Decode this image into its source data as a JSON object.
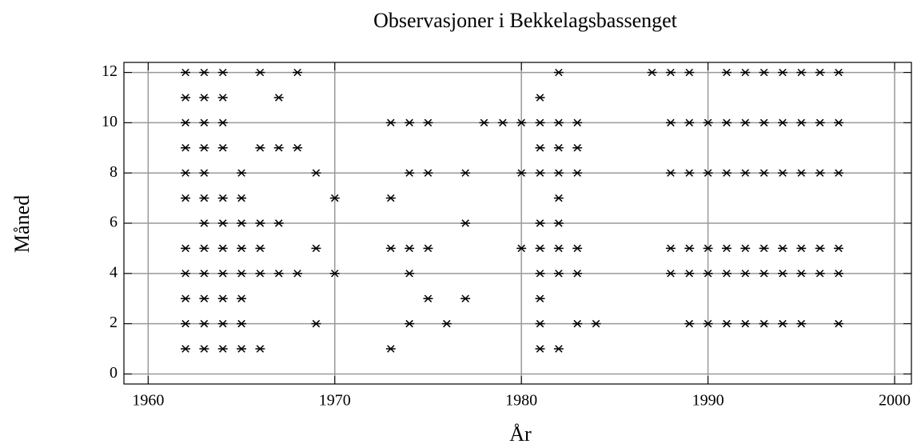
{
  "chart_data": {
    "type": "scatter",
    "title": "Observasjoner i Bekkelagsbassenget",
    "x_label": "År",
    "y_label": "Måned",
    "xlim": [
      1958.7,
      2000.9
    ],
    "ylim": [
      -0.4,
      12.4
    ],
    "xticks": [
      1960,
      1970,
      1980,
      1990,
      2000
    ],
    "yticks": [
      0,
      2,
      4,
      6,
      8,
      10,
      12
    ],
    "grid": true,
    "series": [
      {
        "color": "#000000",
        "x": [
          1962,
          1963,
          1964,
          1966,
          1968,
          1982,
          1987,
          1988,
          1989,
          1991,
          1992,
          1993,
          1994,
          1995,
          1996,
          1997,
          1962,
          1963,
          1964,
          1967,
          1981,
          1962,
          1963,
          1964,
          1973,
          1974,
          1975,
          1978,
          1979,
          1980,
          1981,
          1982,
          1983,
          1988,
          1989,
          1990,
          1991,
          1992,
          1993,
          1994,
          1995,
          1996,
          1997,
          1962,
          1963,
          1964,
          1966,
          1967,
          1968,
          1981,
          1982,
          1983,
          1962,
          1963,
          1965,
          1969,
          1974,
          1975,
          1977,
          1980,
          1981,
          1982,
          1983,
          1988,
          1989,
          1990,
          1991,
          1992,
          1993,
          1994,
          1995,
          1996,
          1997,
          1962,
          1963,
          1964,
          1965,
          1970,
          1973,
          1982,
          1963,
          1964,
          1965,
          1966,
          1967,
          1977,
          1981,
          1982,
          1962,
          1963,
          1964,
          1965,
          1966,
          1969,
          1973,
          1974,
          1975,
          1980,
          1981,
          1982,
          1983,
          1988,
          1989,
          1990,
          1991,
          1992,
          1993,
          1994,
          1995,
          1996,
          1997,
          1962,
          1963,
          1964,
          1965,
          1966,
          1967,
          1968,
          1970,
          1974,
          1981,
          1982,
          1983,
          1988,
          1989,
          1990,
          1991,
          1992,
          1993,
          1994,
          1995,
          1996,
          1997,
          1962,
          1963,
          1964,
          1965,
          1975,
          1977,
          1981,
          1962,
          1963,
          1964,
          1965,
          1969,
          1974,
          1976,
          1981,
          1983,
          1984,
          1989,
          1990,
          1991,
          1992,
          1993,
          1994,
          1995,
          1997,
          1962,
          1963,
          1964,
          1965,
          1966,
          1973,
          1981,
          1982
        ],
        "y": [
          12,
          12,
          12,
          12,
          12,
          12,
          12,
          12,
          12,
          12,
          12,
          12,
          12,
          12,
          12,
          12,
          11,
          11,
          11,
          11,
          11,
          10,
          10,
          10,
          10,
          10,
          10,
          10,
          10,
          10,
          10,
          10,
          10,
          10,
          10,
          10,
          10,
          10,
          10,
          10,
          10,
          10,
          10,
          9,
          9,
          9,
          9,
          9,
          9,
          9,
          9,
          9,
          8,
          8,
          8,
          8,
          8,
          8,
          8,
          8,
          8,
          8,
          8,
          8,
          8,
          8,
          8,
          8,
          8,
          8,
          8,
          8,
          8,
          7,
          7,
          7,
          7,
          7,
          7,
          7,
          6,
          6,
          6,
          6,
          6,
          6,
          6,
          6,
          5,
          5,
          5,
          5,
          5,
          5,
          5,
          5,
          5,
          5,
          5,
          5,
          5,
          5,
          5,
          5,
          5,
          5,
          5,
          5,
          5,
          5,
          5,
          4,
          4,
          4,
          4,
          4,
          4,
          4,
          4,
          4,
          4,
          4,
          4,
          4,
          4,
          4,
          4,
          4,
          4,
          4,
          4,
          4,
          4,
          3,
          3,
          3,
          3,
          3,
          3,
          3,
          2,
          2,
          2,
          2,
          2,
          2,
          2,
          2,
          2,
          2,
          2,
          2,
          2,
          2,
          2,
          2,
          2,
          2,
          1,
          1,
          1,
          1,
          1,
          1,
          1,
          1
        ]
      }
    ]
  }
}
